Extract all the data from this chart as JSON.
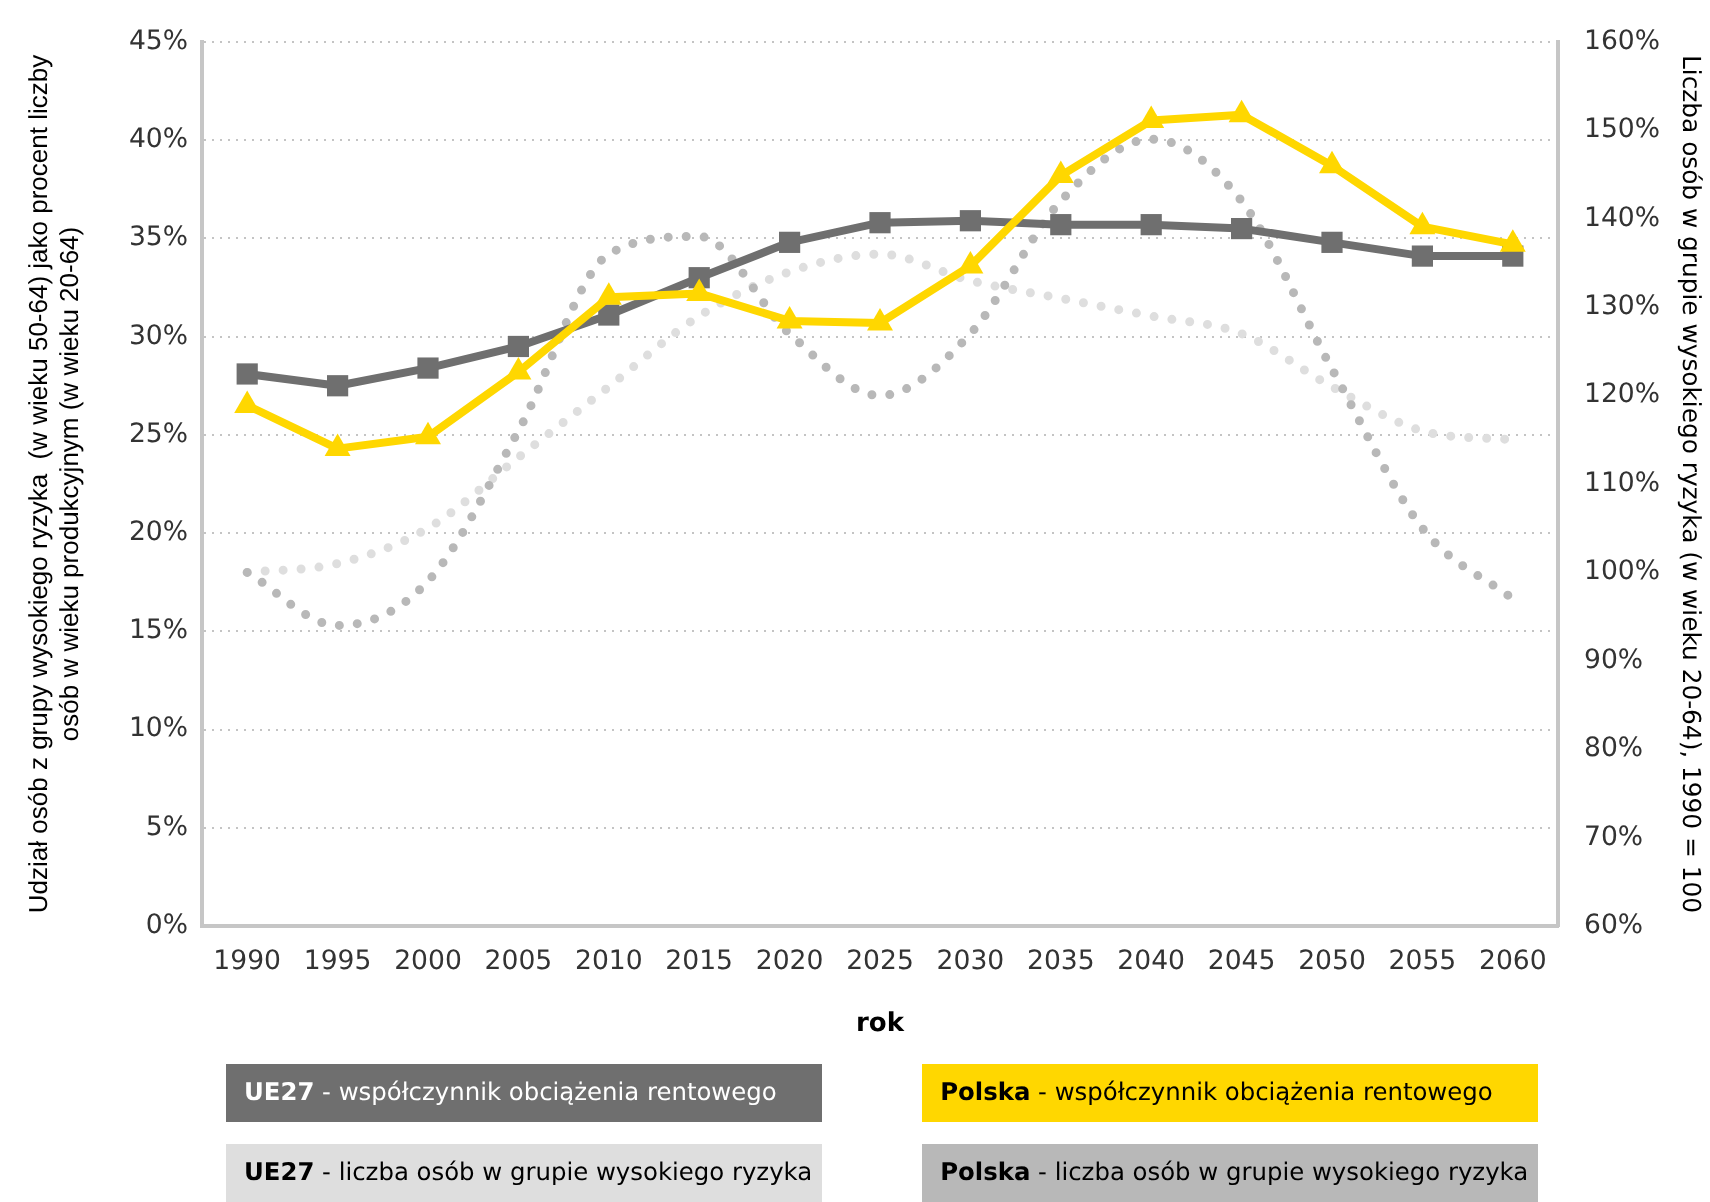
{
  "chart_data": {
    "type": "line",
    "xlabel": "rok",
    "ylabel": "Udział osób z grupy wysokiego ryzyka  (w wieku 50-64) jako procent liczby osób w wieku produkcyjnym (w wieku 20-64)",
    "y2label": "Liczba osób w grupie wysokiego ryzyka (w wieku 20-64), 1990 = 100",
    "categories": [
      "1990",
      "1995",
      "2000",
      "2005",
      "2010",
      "2015",
      "2020",
      "2025",
      "2030",
      "2035",
      "2040",
      "2045",
      "2050",
      "2055",
      "2060"
    ],
    "series": [
      {
        "name": "UE27 - współczynnik obciążenia rentowego",
        "color": "#6f6f6f",
        "marker": "square",
        "line_style": "solid",
        "values": [
          28.1,
          27.5,
          28.4,
          29.5,
          31.1,
          33.0,
          34.8,
          35.8,
          35.9,
          35.7,
          35.7,
          35.5,
          34.8,
          34.1,
          34.1
        ]
      },
      {
        "name": "Polska - współczynnik obciążenia rentowego",
        "color": "#ffd700",
        "marker": "triangle",
        "line_style": "solid",
        "values": [
          26.5,
          24.3,
          24.9,
          28.2,
          32.0,
          32.2,
          30.8,
          30.7,
          33.6,
          38.2,
          41.0,
          41.3,
          38.7,
          35.6,
          34.7
        ]
      },
      {
        "name": "UE27 - liczba osób w grupie wysokiego ryzyka",
        "color": "#dedede",
        "marker": "none",
        "line_style": "dotted",
        "axis": "y2",
        "values": [
          100,
          101,
          105,
          113,
          121,
          129,
          134,
          136,
          133,
          131,
          129,
          127,
          121,
          116,
          115
        ]
      },
      {
        "name": "Polska - liczba osób w grupie wysokiego ryzyka",
        "color": "#b8b8b8",
        "marker": "none",
        "line_style": "dotted",
        "axis": "y2",
        "values": [
          100,
          94,
          99,
          116,
          136,
          138,
          127,
          120,
          127,
          142,
          149,
          142,
          123,
          105,
          97
        ]
      }
    ],
    "ylim": [
      0,
      45
    ],
    "yticks": [
      {
        "value": 0,
        "label": "0%"
      },
      {
        "value": 5,
        "label": "5%"
      },
      {
        "value": 10,
        "label": "10%"
      },
      {
        "value": 15,
        "label": "15%"
      },
      {
        "value": 20,
        "label": "20%"
      },
      {
        "value": 25,
        "label": "25%"
      },
      {
        "value": 30,
        "label": "30%"
      },
      {
        "value": 35,
        "label": "35%"
      },
      {
        "value": 40,
        "label": "40%"
      },
      {
        "value": 45,
        "label": "45%"
      }
    ],
    "y2lim": [
      60,
      160
    ],
    "y2ticks": [
      {
        "value": 60,
        "label": "60%"
      },
      {
        "value": 70,
        "label": "70%"
      },
      {
        "value": 80,
        "label": "80%"
      },
      {
        "value": 90,
        "label": "90%"
      },
      {
        "value": 100,
        "label": "100%"
      },
      {
        "value": 110,
        "label": "110%"
      },
      {
        "value": 120,
        "label": "120%"
      },
      {
        "value": 130,
        "label": "130%"
      },
      {
        "value": 140,
        "label": "140%"
      },
      {
        "value": 150,
        "label": "150%"
      },
      {
        "value": 160,
        "label": "160%"
      }
    ],
    "grid": "y",
    "legend": "bottom"
  }
}
